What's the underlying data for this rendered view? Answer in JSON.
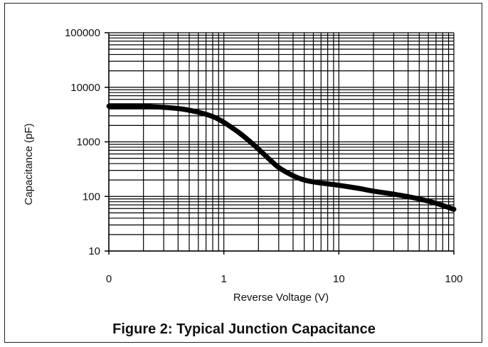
{
  "caption": "Figure 2: Typical Junction Capacitance",
  "chart_data": {
    "type": "line",
    "title": "",
    "xlabel": "Reverse Voltage (V)",
    "ylabel": "Capacitance (pF)",
    "x_scale": "log",
    "y_scale": "log",
    "xlim": [
      0.1,
      100
    ],
    "ylim": [
      10,
      100000
    ],
    "x_tick_labels": [
      "0",
      "1",
      "10",
      "100"
    ],
    "y_tick_labels": [
      "10",
      "100",
      "1000",
      "10000",
      "100000"
    ],
    "grid": true,
    "series": [
      {
        "x": [
          0.1,
          0.2,
          0.35,
          0.5,
          0.7,
          0.9,
          1.1,
          1.4,
          1.8,
          2.3,
          3,
          4,
          5,
          6.5,
          8,
          10,
          15,
          20,
          30,
          50,
          70,
          100
        ],
        "values": [
          4500,
          4450,
          4200,
          3800,
          3200,
          2600,
          2000,
          1400,
          900,
          560,
          340,
          240,
          200,
          180,
          170,
          160,
          140,
          125,
          110,
          90,
          75,
          58
        ]
      }
    ]
  }
}
